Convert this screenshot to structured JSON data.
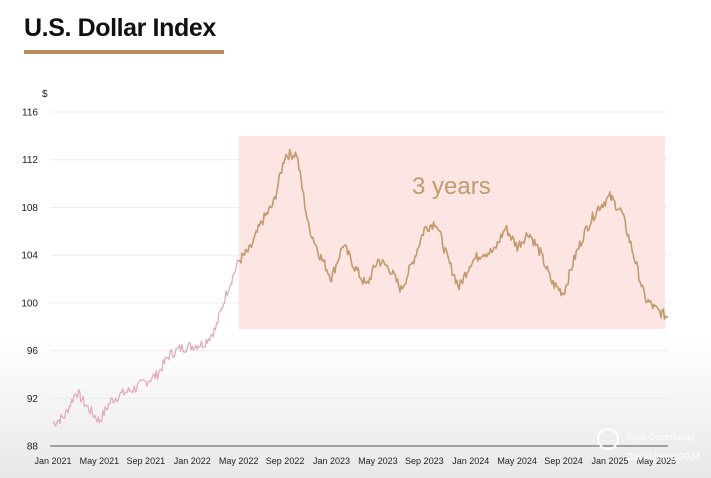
{
  "header": {
    "title": "U.S. Dollar Index"
  },
  "watermark": {
    "line1": "Tiger Community",
    "line2": "DavidJenny2024"
  },
  "chart_data": {
    "type": "line",
    "title": "U.S. Dollar Index",
    "ylabel": "$",
    "xlabel": "",
    "ylim": [
      88,
      116
    ],
    "yticks": [
      88,
      92,
      96,
      100,
      104,
      108,
      112,
      116
    ],
    "xticks": [
      "Jan 2021",
      "May 2021",
      "Sep 2021",
      "Jan 2022",
      "May 2022",
      "Sep 2022",
      "Jan 2023",
      "May 2023",
      "Sep 2023",
      "Jan 2024",
      "May 2024",
      "Sep 2024",
      "Jan 2025",
      "May 2025"
    ],
    "grid": true,
    "annotation": {
      "label": "3 years",
      "x_start": "2022-05",
      "x_end": "2025-06",
      "y_start": 97.8,
      "y_end": 114
    },
    "colors": {
      "pre_range": "#e2a9b6",
      "in_range": "#c49a6c",
      "highlight": "#fde0de",
      "annotation_text": "#c49a6c",
      "accent": "#b98a5e"
    },
    "series": [
      {
        "x": [
          "2021-01",
          "2021-02",
          "2021-03",
          "2021-04",
          "2021-05",
          "2021-06",
          "2021-07",
          "2021-08",
          "2021-09",
          "2021-10",
          "2021-11",
          "2021-12",
          "2022-01",
          "2022-02",
          "2022-03",
          "2022-04",
          "2022-05",
          "2022-06",
          "2022-07",
          "2022-08",
          "2022-09",
          "2022-10",
          "2022-11",
          "2022-12",
          "2023-01",
          "2023-02",
          "2023-03",
          "2023-04",
          "2023-05",
          "2023-06",
          "2023-07",
          "2023-08",
          "2023-09",
          "2023-10",
          "2023-11",
          "2023-12",
          "2024-01",
          "2024-02",
          "2024-03",
          "2024-04",
          "2024-05",
          "2024-06",
          "2024-07",
          "2024-08",
          "2024-09",
          "2024-10",
          "2024-11",
          "2024-12",
          "2025-01",
          "2025-02",
          "2025-03",
          "2025-04",
          "2025-05",
          "2025-06"
        ],
        "values": [
          89.9,
          90.5,
          92.6,
          91.2,
          90.1,
          91.8,
          92.4,
          92.8,
          93.4,
          94.0,
          95.6,
          96.2,
          96.4,
          96.6,
          97.8,
          101.0,
          103.5,
          104.5,
          106.8,
          108.3,
          112.4,
          112.5,
          106.5,
          104.0,
          102.1,
          104.9,
          103.0,
          101.4,
          103.6,
          102.9,
          101.1,
          103.4,
          106.2,
          106.8,
          103.7,
          101.3,
          103.4,
          104.2,
          104.3,
          106.3,
          104.7,
          105.9,
          104.2,
          101.7,
          100.8,
          103.9,
          106.3,
          108.0,
          108.9,
          107.6,
          104.2,
          100.4,
          99.4,
          98.8
        ]
      }
    ]
  }
}
